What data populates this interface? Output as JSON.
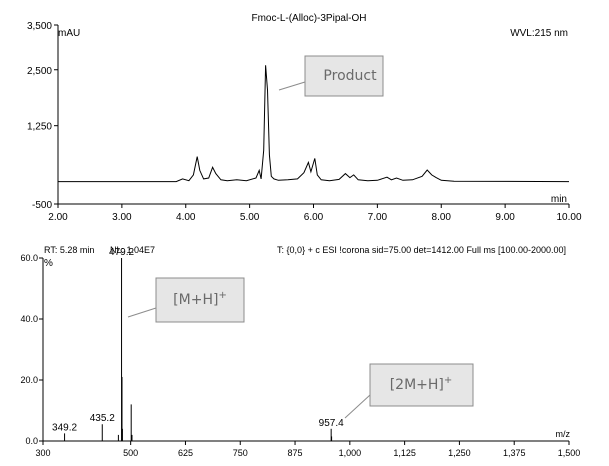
{
  "chart_data": [
    {
      "type": "line",
      "title": "Fmoc-L-(Alloc)-3Pipal-OH",
      "ylabel": "mAU",
      "xlabel": "min",
      "wavelength_label": "WVL:215 nm",
      "xlim": [
        2.0,
        10.0
      ],
      "ylim": [
        -500,
        3500
      ],
      "xticks": [
        "2.00",
        "3.00",
        "4.00",
        "5.00",
        "6.00",
        "7.00",
        "8.00",
        "9.00",
        "10.00"
      ],
      "yticks": [
        "3,500",
        "2,500",
        "1,250",
        "-500"
      ],
      "series": [
        {
          "x": [
            2.0,
            3.85,
            3.95,
            4.05,
            4.12,
            4.18,
            4.22,
            4.28,
            4.36,
            4.42,
            4.47,
            4.55,
            4.65,
            4.8,
            4.95,
            5.1,
            5.15,
            5.18,
            5.22,
            5.25,
            5.28,
            5.31,
            5.34,
            5.38,
            5.45,
            5.6,
            5.75,
            5.85,
            5.92,
            5.96,
            6.02,
            6.06,
            6.12,
            6.25,
            6.4,
            6.5,
            6.57,
            6.63,
            6.7,
            6.85,
            7.0,
            7.15,
            7.22,
            7.3,
            7.4,
            7.55,
            7.7,
            7.78,
            7.85,
            7.92,
            8.0,
            8.2,
            10.0
          ],
          "y": [
            0,
            0,
            60,
            20,
            150,
            560,
            250,
            60,
            80,
            320,
            180,
            40,
            20,
            40,
            20,
            80,
            250,
            60,
            700,
            2600,
            2050,
            600,
            120,
            60,
            30,
            40,
            60,
            200,
            430,
            220,
            520,
            150,
            40,
            20,
            50,
            180,
            90,
            150,
            40,
            20,
            30,
            100,
            40,
            80,
            30,
            40,
            120,
            260,
            150,
            90,
            30,
            10,
            0
          ]
        }
      ],
      "annotations": [
        "Product"
      ]
    },
    {
      "type": "bar",
      "header": {
        "rt": "RT: 5.28 min",
        "nl": "NL: 1.04E7",
        "scan": "T: {0,0}  + c ESI !corona sid=75.00  det=1412.00 Full ms [100.00-2000.00]"
      },
      "ylabel": "%",
      "xlabel": "m/z",
      "xlim": [
        300,
        1500
      ],
      "ylim": [
        0,
        60
      ],
      "xticks": [
        "300",
        "500",
        "625",
        "750",
        "875",
        "1,000",
        "1,125",
        "1,250",
        "1,375",
        "1,500"
      ],
      "yticks": [
        "60.0",
        "40.0",
        "20.0",
        "0.0"
      ],
      "peaks": [
        {
          "mz": 349.2,
          "intensity": 2.5,
          "label": "349.2"
        },
        {
          "mz": 435.2,
          "intensity": 5.5,
          "label": "435.2"
        },
        {
          "mz": 472.0,
          "intensity": 2.0,
          "label": ""
        },
        {
          "mz": 479.2,
          "intensity": 60.0,
          "label": "479.2"
        },
        {
          "mz": 480.2,
          "intensity": 21.0,
          "label": ""
        },
        {
          "mz": 481.2,
          "intensity": 4.0,
          "label": ""
        },
        {
          "mz": 501.2,
          "intensity": 12.0,
          "label": ""
        },
        {
          "mz": 503.0,
          "intensity": 2.0,
          "label": ""
        },
        {
          "mz": 957.4,
          "intensity": 4.0,
          "label": "957.4"
        },
        {
          "mz": 958.4,
          "intensity": 1.5,
          "label": ""
        }
      ],
      "annotations": [
        {
          "base": "[M+H]",
          "sup": "+"
        },
        {
          "base": "[2M+H]",
          "sup": "+"
        }
      ]
    }
  ],
  "colors": {
    "line": "#000000",
    "callout_fill": "#e6e6e6",
    "callout_border": "#8c8c8c",
    "callout_text": "#6a6a6a"
  }
}
